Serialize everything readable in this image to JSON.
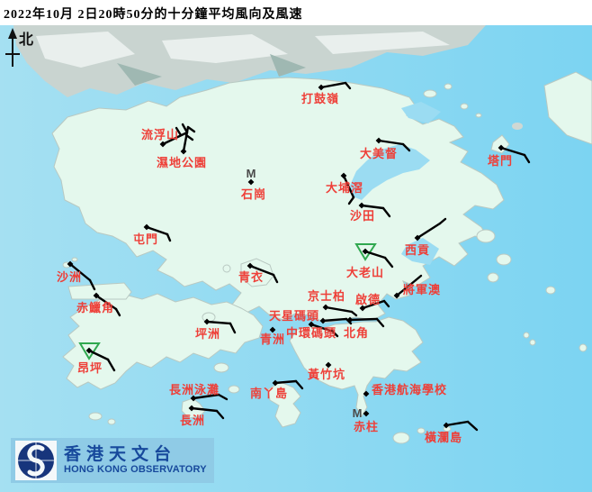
{
  "title": "2022年10月 2日20時50分的十分鐘平均風向及風速",
  "north_label": "北",
  "logo": {
    "chinese": "香港天文台",
    "english": "HONG KONG OBSERVATORY"
  },
  "map": {
    "colors": {
      "sea": "#8ed9f2",
      "land": "#e4f8ed",
      "urban": "#c9d4d0",
      "label": "#ee3f38",
      "barb": "#000000",
      "triangle": "#2fa84f",
      "m_marker": "#4a4a4a",
      "banner": "#8fcbe6",
      "logo_navy": "#17357c",
      "logo_text": "#17499c"
    }
  },
  "stations": [
    {
      "id": "ta-kwu-ling",
      "name": "打鼓嶺",
      "label": [
        335,
        103
      ],
      "dot": [
        357,
        97
      ],
      "segments": [
        [
          357,
          97,
          384,
          92
        ],
        [
          384,
          92,
          389,
          98
        ]
      ]
    },
    {
      "id": "lau-fau-shan",
      "name": "流浮山",
      "label": [
        157,
        143
      ],
      "dot": [
        181,
        160
      ],
      "segments": [
        [
          181,
          160,
          208,
          147
        ],
        [
          208,
          147,
          203,
          138
        ],
        [
          201,
          150,
          196,
          142
        ]
      ]
    },
    {
      "id": "wetland-park",
      "name": "濕地公園",
      "label": [
        174,
        174
      ],
      "dot": [
        204,
        168
      ],
      "segments": [
        [
          204,
          168,
          209,
          141
        ],
        [
          209,
          141,
          216,
          146
        ],
        [
          207,
          150,
          214,
          155
        ]
      ]
    },
    {
      "id": "tai-mei-tuk",
      "name": "大美督",
      "label": [
        400,
        164
      ],
      "dot": [
        421,
        156
      ],
      "segments": [
        [
          421,
          156,
          448,
          160
        ],
        [
          448,
          160,
          455,
          167
        ]
      ]
    },
    {
      "id": "tap-mun",
      "name": "塔門",
      "label": [
        542,
        172
      ],
      "dot": [
        557,
        164
      ],
      "segments": [
        [
          557,
          164,
          583,
          172
        ],
        [
          583,
          172,
          588,
          180
        ]
      ]
    },
    {
      "id": "tai-po-kau",
      "name": "大埔滘",
      "label": [
        362,
        202
      ],
      "dot": [
        382,
        195
      ],
      "segments": [
        [
          382,
          195,
          393,
          219
        ],
        [
          393,
          219,
          388,
          226
        ]
      ]
    },
    {
      "id": "sha-tin",
      "name": "沙田",
      "label": [
        389,
        233
      ],
      "dot": [
        402,
        228
      ],
      "segments": [
        [
          402,
          228,
          426,
          231
        ],
        [
          426,
          231,
          433,
          240
        ]
      ]
    },
    {
      "id": "shek-kong",
      "name": "石崗",
      "label": [
        268,
        209
      ],
      "dot": [
        279,
        202
      ],
      "m": [
        279,
        197
      ]
    },
    {
      "id": "tuen-mun",
      "name": "屯門",
      "label": [
        148,
        259
      ],
      "dot": [
        163,
        252
      ],
      "segments": [
        [
          163,
          252,
          186,
          260
        ],
        [
          186,
          260,
          189,
          267
        ]
      ]
    },
    {
      "id": "sha-chau",
      "name": "沙洲",
      "label": [
        63,
        301
      ],
      "dot": [
        78,
        293
      ],
      "segments": [
        [
          78,
          293,
          100,
          311
        ],
        [
          100,
          311,
          105,
          321
        ]
      ]
    },
    {
      "id": "chek-lap-kok",
      "name": "赤鱲角",
      "label": [
        85,
        335
      ],
      "dot": [
        107,
        328
      ],
      "segments": [
        [
          107,
          328,
          129,
          343
        ],
        [
          129,
          343,
          133,
          350
        ]
      ]
    },
    {
      "id": "tsing-yi",
      "name": "青衣",
      "label": [
        265,
        301
      ],
      "dot": [
        278,
        295
      ],
      "segments": [
        [
          278,
          295,
          304,
          305
        ],
        [
          304,
          305,
          308,
          313
        ]
      ]
    },
    {
      "id": "tates-cairn",
      "name": "大老山",
      "label": [
        385,
        296
      ],
      "dot": [
        406,
        279
      ],
      "segments": [
        [
          406,
          279,
          428,
          286
        ],
        [
          428,
          286,
          436,
          296
        ]
      ],
      "triangle": [
        396,
        271,
        417,
        271,
        406,
        288
      ]
    },
    {
      "id": "sai-kung",
      "name": "西貢",
      "label": [
        450,
        271
      ],
      "dot": [
        464,
        264
      ],
      "segments": [
        [
          464,
          264,
          489,
          248
        ],
        [
          489,
          248,
          495,
          243
        ]
      ]
    },
    {
      "id": "tseung-kwan-o",
      "name": "將軍澳",
      "label": [
        448,
        315
      ],
      "dot": [
        441,
        328
      ],
      "segments": [
        [
          441,
          328,
          462,
          311
        ],
        [
          462,
          311,
          468,
          306
        ]
      ]
    },
    {
      "id": "kings-park",
      "name": "京士柏",
      "label": [
        342,
        322
      ],
      "dot": [
        362,
        341
      ],
      "segments": [
        [
          362,
          341,
          391,
          346
        ],
        [
          391,
          346,
          396,
          350
        ]
      ]
    },
    {
      "id": "kai-tak",
      "name": "啟德",
      "label": [
        395,
        326
      ],
      "dot": [
        403,
        342
      ],
      "segments": [
        [
          403,
          342,
          427,
          334
        ],
        [
          427,
          334,
          432,
          340
        ]
      ]
    },
    {
      "id": "star-ferry-pier",
      "name": "天星碼頭",
      "label": [
        299,
        344
      ],
      "dot": [
        359,
        356
      ],
      "segments": [
        [
          359,
          356,
          385,
          354
        ],
        [
          385,
          354,
          390,
          359
        ]
      ]
    },
    {
      "id": "central-pier",
      "name": "中環碼頭",
      "label": [
        318,
        363
      ],
      "dot": [
        346,
        360
      ],
      "segments": [
        [
          346,
          360,
          370,
          368
        ],
        [
          370,
          368,
          375,
          373
        ]
      ]
    },
    {
      "id": "green-island",
      "name": "青洲",
      "label": [
        289,
        370
      ],
      "dot": [
        303,
        366
      ],
      "segments": []
    },
    {
      "id": "north-point",
      "name": "北角",
      "label": [
        382,
        363
      ],
      "dot": [
        389,
        355
      ],
      "segments": [
        [
          389,
          355,
          419,
          354
        ],
        [
          419,
          354,
          426,
          362
        ]
      ]
    },
    {
      "id": "peng-chau",
      "name": "坪洲",
      "label": [
        217,
        364
      ],
      "dot": [
        230,
        357
      ],
      "segments": [
        [
          230,
          357,
          256,
          359
        ],
        [
          256,
          359,
          261,
          369
        ]
      ]
    },
    {
      "id": "ngong-ping",
      "name": "昂坪",
      "label": [
        86,
        402
      ],
      "dot": [
        99,
        389
      ],
      "segments": [
        [
          99,
          389,
          120,
          399
        ],
        [
          120,
          399,
          127,
          411
        ]
      ],
      "triangle": [
        89,
        381,
        110,
        381,
        99,
        398
      ]
    },
    {
      "id": "wong-chuk-hang",
      "name": "黃竹坑",
      "label": [
        342,
        409
      ],
      "dot": [
        365,
        405
      ],
      "segments": []
    },
    {
      "id": "lamma-island",
      "name": "南丫島",
      "label": [
        278,
        430
      ],
      "dot": [
        306,
        425
      ],
      "segments": [
        [
          306,
          425,
          329,
          423
        ],
        [
          329,
          423,
          336,
          431
        ]
      ]
    },
    {
      "id": "cheung-chau-beach",
      "name": "長洲泳灘",
      "label": [
        188,
        426
      ],
      "dot": [
        215,
        442
      ],
      "segments": [
        [
          215,
          442,
          243,
          438
        ],
        [
          243,
          438,
          252,
          443
        ]
      ]
    },
    {
      "id": "cheung-chau",
      "name": "長洲",
      "label": [
        200,
        460
      ],
      "dot": [
        213,
        453
      ],
      "segments": [
        [
          213,
          453,
          241,
          456
        ],
        [
          241,
          456,
          248,
          464
        ]
      ]
    },
    {
      "id": "hk-sea-school",
      "name": "香港航海學校",
      "label": [
        413,
        426
      ],
      "dot": [
        407,
        437
      ],
      "segments": []
    },
    {
      "id": "stanley",
      "name": "赤柱",
      "label": [
        393,
        467
      ],
      "dot": [
        407,
        459
      ],
      "m": [
        397,
        463
      ]
    },
    {
      "id": "waglan-island",
      "name": "橫瀾島",
      "label": [
        472,
        479
      ],
      "dot": [
        496,
        472
      ],
      "segments": [
        [
          496,
          472,
          520,
          468
        ],
        [
          530,
          477,
          520,
          468
        ]
      ]
    }
  ]
}
